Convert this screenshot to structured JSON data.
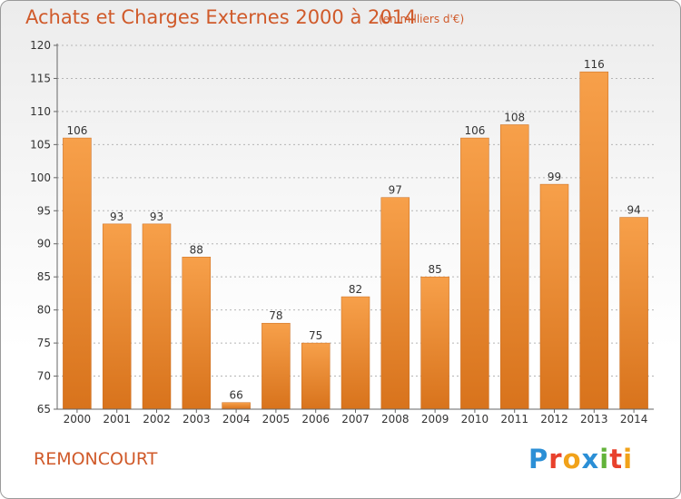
{
  "header": {
    "title": "Achats et Charges Externes 2000 à 2014",
    "unit": "(en milliers d'€)"
  },
  "footer": {
    "commune": "REMONCOURT",
    "brand": "Proxiti"
  },
  "colors": {
    "accent": "#d05a2a",
    "bar_light": "#f7a04a",
    "bar_dark": "#d8731c",
    "grid": "#b5b5b5"
  },
  "chart_data": {
    "type": "bar",
    "title": "Achats et Charges Externes 2000 à 2014",
    "subtitle": "(en milliers d'€)",
    "xlabel": "",
    "ylabel": "",
    "categories": [
      "2000",
      "2001",
      "2002",
      "2003",
      "2004",
      "2005",
      "2006",
      "2007",
      "2008",
      "2009",
      "2010",
      "2011",
      "2012",
      "2013",
      "2014"
    ],
    "values": [
      106,
      93,
      93,
      88,
      66,
      78,
      75,
      82,
      97,
      85,
      106,
      108,
      99,
      116,
      94
    ],
    "ylim": [
      65,
      120
    ],
    "yticks": [
      65,
      70,
      75,
      80,
      85,
      90,
      95,
      100,
      105,
      110,
      115,
      120
    ],
    "grid": true,
    "legend": "none"
  }
}
